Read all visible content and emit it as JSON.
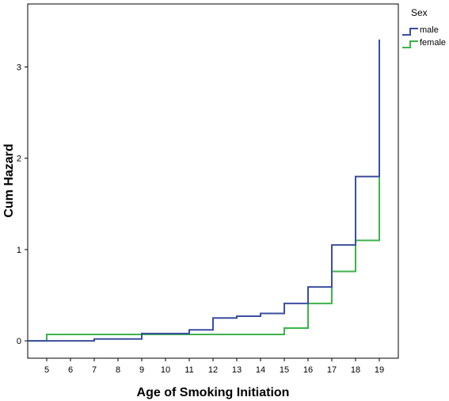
{
  "chart_data": {
    "type": "line",
    "step": true,
    "xlabel": "Age of Smoking Initiation",
    "ylabel": "Cum Hazard",
    "xticks": [
      5,
      6,
      7,
      8,
      9,
      10,
      11,
      12,
      13,
      14,
      15,
      16,
      17,
      18,
      19
    ],
    "yticks": [
      0,
      1,
      2,
      3
    ],
    "xlim": [
      4.2,
      19.8
    ],
    "ylim": [
      -0.19,
      3.69
    ],
    "grid": false,
    "legend": {
      "title": "Sex",
      "placement": "top-right"
    },
    "series": [
      {
        "name": "male",
        "color": "#3b4ea0",
        "x": [
          4.2,
          5,
          7,
          9,
          11,
          12,
          13,
          14,
          15,
          16,
          17,
          18,
          19
        ],
        "y": [
          0,
          0,
          0.02,
          0.08,
          0.12,
          0.25,
          0.27,
          0.3,
          0.41,
          0.59,
          1.05,
          1.8,
          3.3
        ]
      },
      {
        "name": "female",
        "color": "#3db34a",
        "x": [
          4.2,
          5,
          15,
          16,
          17,
          18,
          19
        ],
        "y": [
          0,
          0.07,
          0.14,
          0.41,
          0.76,
          1.1,
          2.7
        ]
      }
    ]
  }
}
